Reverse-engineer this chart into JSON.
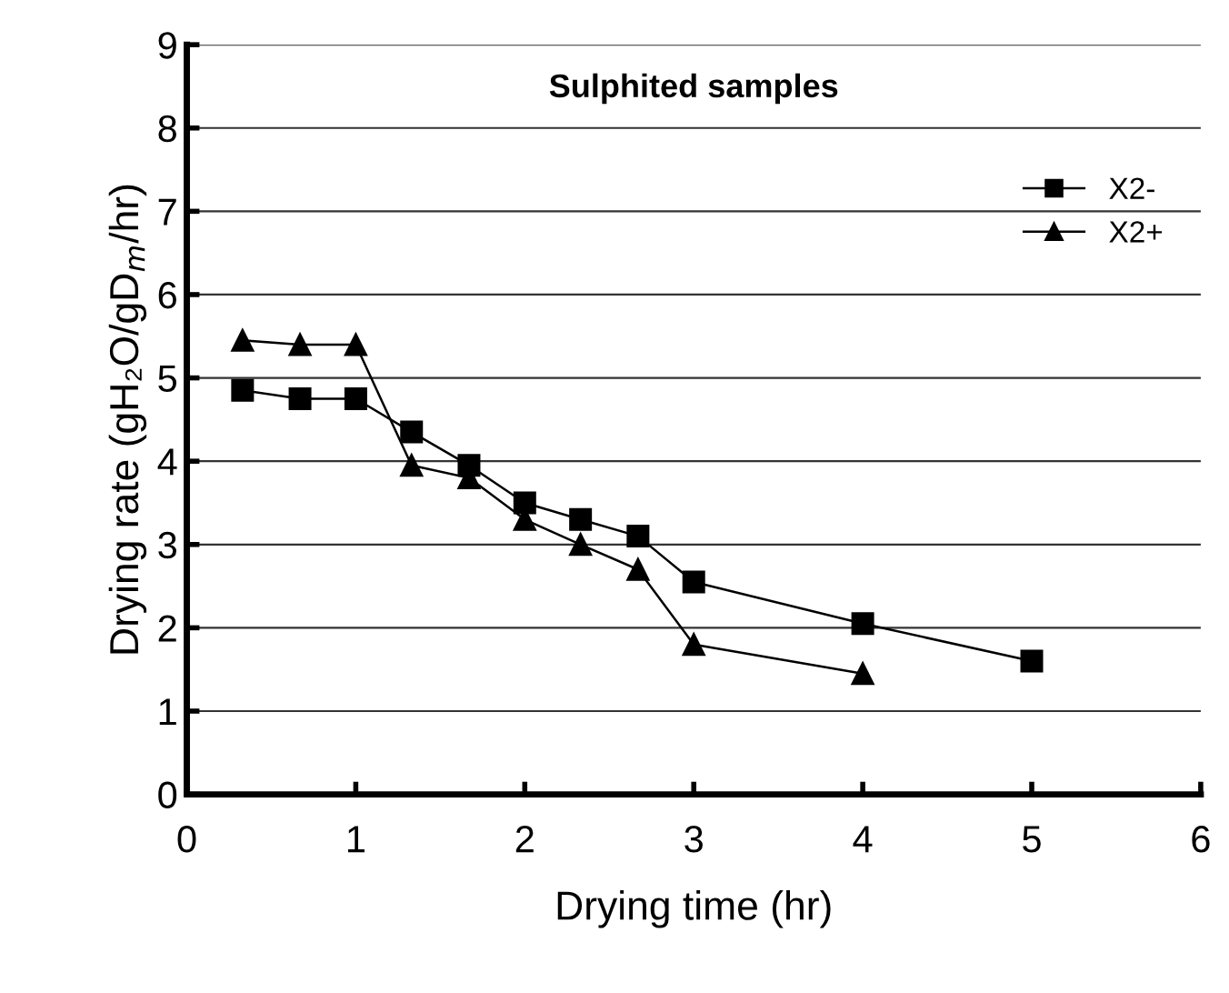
{
  "chart_data": {
    "type": "line",
    "title": "Sulphited samples",
    "xlabel": "Drying time (hr)",
    "ylabel": "Drying rate (gH₂O/gD$_{m}$/hr)",
    "xlim": [
      0,
      6
    ],
    "xticks": [
      0,
      1,
      2,
      3,
      4,
      5,
      6
    ],
    "ylim": [
      0,
      9
    ],
    "yticks": [
      0,
      1,
      2,
      3,
      4,
      5,
      6,
      7,
      8,
      9
    ],
    "grid": "y",
    "legend": "top right",
    "series": [
      {
        "name": "X2-",
        "color": "#000000",
        "marker": "square",
        "x": [
          0.33,
          0.67,
          1,
          1.33,
          1.67,
          2,
          2.33,
          2.67,
          3,
          4,
          5
        ],
        "values": [
          4.85,
          4.75,
          4.75,
          4.35,
          3.95,
          3.5,
          3.3,
          3.1,
          2.55,
          2.05,
          1.6
        ]
      },
      {
        "name": "X2+",
        "color": "#000000",
        "marker": "triangle",
        "x": [
          0.33,
          0.67,
          1,
          1.33,
          1.67,
          2,
          2.33,
          2.67,
          3,
          4
        ],
        "values": [
          5.45,
          5.4,
          5.4,
          3.95,
          3.8,
          3.3,
          3.0,
          2.7,
          1.8,
          1.45
        ]
      }
    ]
  }
}
